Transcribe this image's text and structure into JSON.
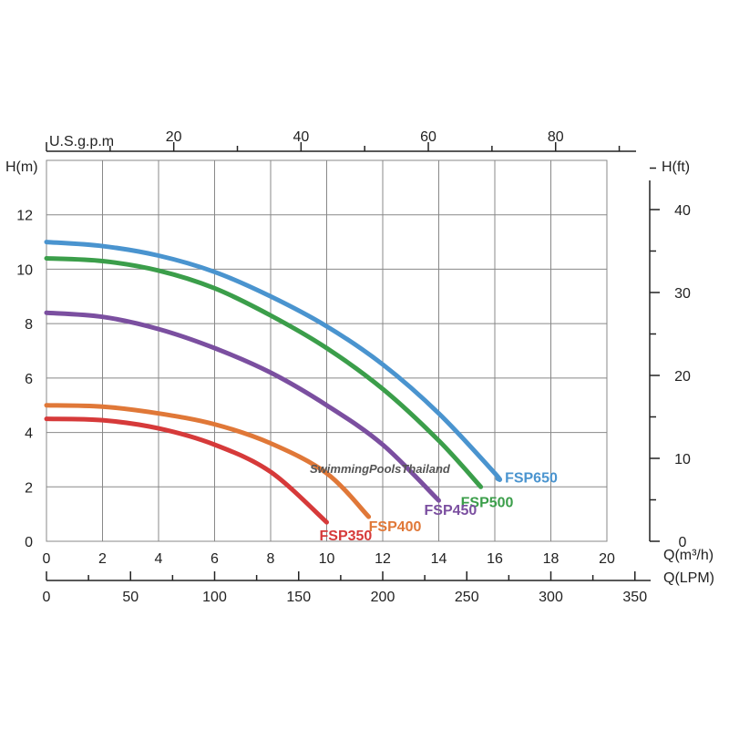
{
  "chart_data": {
    "type": "line",
    "x_unit": "Q(m³/h)",
    "xlim": [
      0,
      20
    ],
    "x_ticks": [
      0,
      2,
      4,
      6,
      8,
      10,
      12,
      14,
      16,
      18,
      20
    ],
    "y_label": "H(m)",
    "ylim": [
      0,
      14
    ],
    "y_ticks": [
      0,
      2,
      4,
      6,
      8,
      10,
      12
    ],
    "y2_label": "H(ft)",
    "y2_lim": [
      0,
      45.93
    ],
    "y2_ticks": [
      0,
      10,
      20,
      30,
      40
    ],
    "x_top_label": "U.S.g.p.m",
    "x_top_ticks": [
      20,
      40,
      60,
      80
    ],
    "x_bottom2_label": "Q(LPM)",
    "x_bottom2_lim": [
      0,
      333.3
    ],
    "x_bottom2_ticks": [
      0,
      50,
      100,
      150,
      200,
      250,
      300,
      350
    ],
    "grid": true,
    "watermark": "SwimmingPoolsThailand",
    "series": [
      {
        "name": "FSP650",
        "color": "#4a94cf",
        "x": [
          0,
          2,
          4,
          6,
          8,
          10,
          12,
          14,
          16,
          16.1
        ],
        "y": [
          11.0,
          10.85,
          10.5,
          9.9,
          9.0,
          7.9,
          6.5,
          4.7,
          2.5,
          2.3
        ]
      },
      {
        "name": "FSP500",
        "color": "#3b9e4a",
        "x": [
          0,
          2,
          4,
          6,
          8,
          10,
          12,
          14,
          15.5
        ],
        "y": [
          10.4,
          10.3,
          9.95,
          9.3,
          8.3,
          7.1,
          5.6,
          3.7,
          2.0
        ]
      },
      {
        "name": "FSP450",
        "color": "#7b4fa0",
        "x": [
          0,
          2,
          4,
          6,
          8,
          10,
          12,
          14
        ],
        "y": [
          8.4,
          8.25,
          7.8,
          7.1,
          6.2,
          5.0,
          3.55,
          1.5
        ]
      },
      {
        "name": "FSP400",
        "color": "#e07838",
        "x": [
          0,
          2,
          4,
          6,
          8,
          10,
          11.5
        ],
        "y": [
          5.0,
          4.95,
          4.7,
          4.3,
          3.6,
          2.5,
          0.9
        ]
      },
      {
        "name": "FSP350",
        "color": "#d63a3a",
        "x": [
          0,
          2,
          4,
          6,
          8,
          10
        ],
        "y": [
          4.5,
          4.45,
          4.15,
          3.55,
          2.55,
          0.7
        ]
      }
    ]
  }
}
